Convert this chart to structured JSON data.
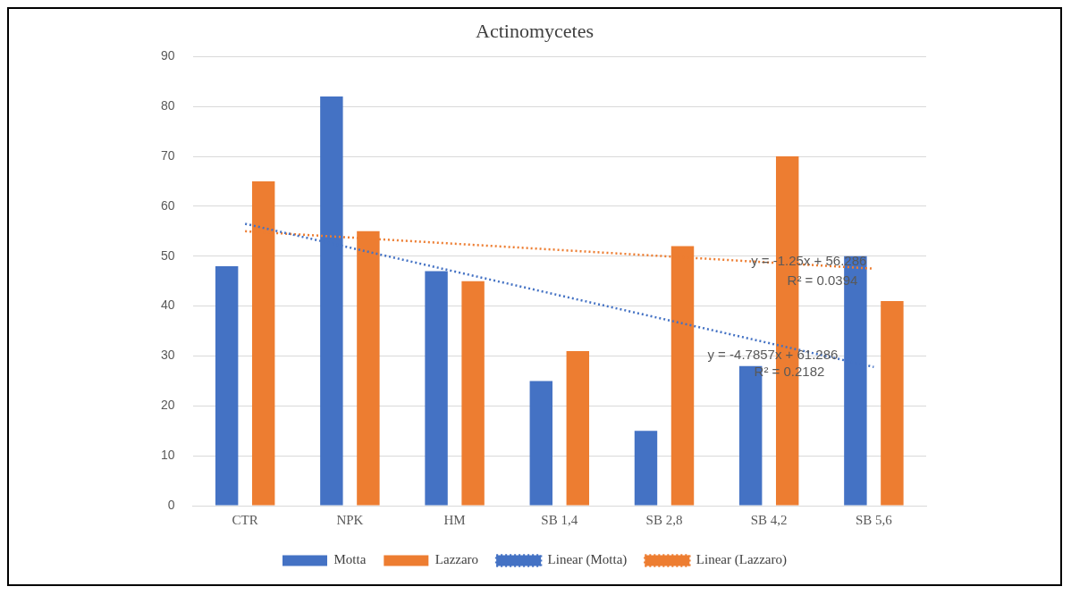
{
  "chart_data": {
    "type": "bar",
    "title": "Actinomycetes",
    "categories": [
      "CTR",
      "NPK",
      "HM",
      "SB 1,4",
      "SB 2,8",
      "SB 4,2",
      "SB 5,6"
    ],
    "series": [
      {
        "name": "Motta",
        "color": "#4472c4",
        "values": [
          48,
          82,
          47,
          25,
          15,
          28,
          50
        ]
      },
      {
        "name": "Lazzaro",
        "color": "#ed7d31",
        "values": [
          65,
          55,
          45,
          31,
          52,
          70,
          41
        ]
      },
      {
        "name": "Linear (Motta)",
        "type": "line",
        "color": "#4472c4",
        "line_style": "dotted",
        "x": [
          "CTR",
          "SB 5,6"
        ],
        "values": [
          56.5,
          27.8
        ]
      },
      {
        "name": "Linear (Lazzaro)",
        "type": "line",
        "color": "#ed7d31",
        "line_style": "dotted",
        "x": [
          "CTR",
          "SB 5,6"
        ],
        "values": [
          55,
          47.5
        ]
      }
    ],
    "ylim": [
      0,
      90
    ],
    "yticks": [
      0,
      10,
      20,
      30,
      40,
      50,
      60,
      70,
      80,
      90
    ],
    "grid": "y",
    "legend": "bottom",
    "annotations": [
      "y = -1.25x + 56.286",
      "R² = 0.0394",
      "y = -4.7857x + 61.286",
      "R² = 0.2182"
    ]
  }
}
